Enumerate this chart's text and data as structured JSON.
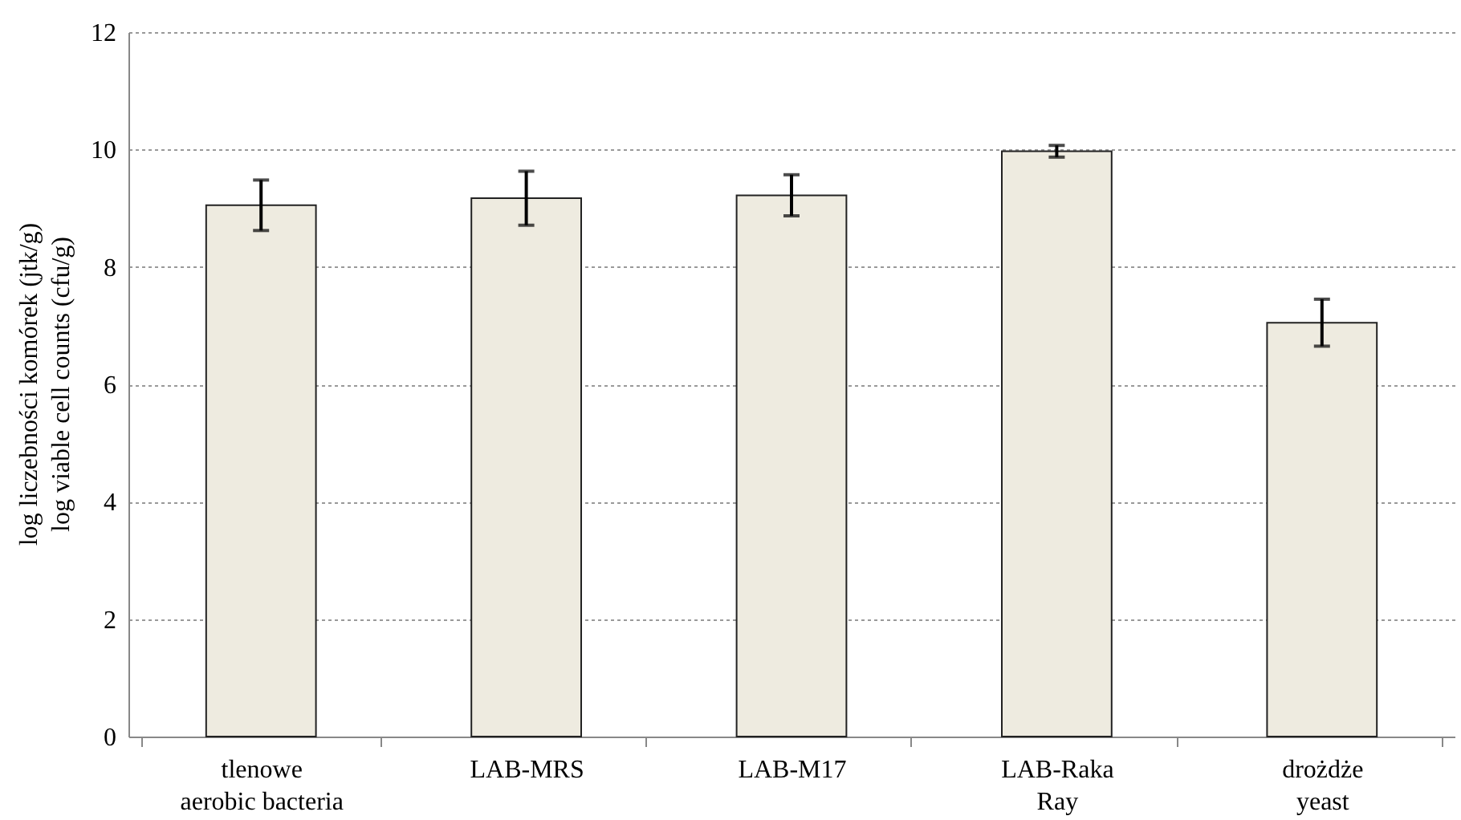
{
  "chart_data": {
    "type": "bar",
    "ylabel": "log liczebności komórek (jtk/g)\nlog viable cell counts (cfu/g)",
    "categories": [
      "tlenowe\naerobic bacteria",
      "LAB-MRS",
      "LAB-M17",
      "LAB-Raka\nRay",
      "drożdże\nyeast"
    ],
    "values": [
      9.05,
      9.17,
      9.22,
      9.97,
      7.05
    ],
    "errors": [
      0.43,
      0.46,
      0.35,
      0.1,
      0.4
    ],
    "color": "#eeebe0",
    "ylim": [
      0,
      12
    ],
    "yticks": [
      0,
      2,
      4,
      6,
      8,
      10,
      12
    ],
    "grid": "y"
  }
}
